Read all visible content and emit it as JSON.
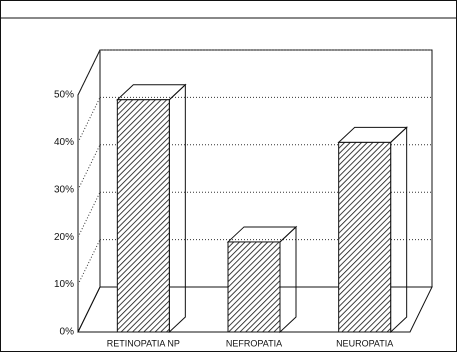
{
  "chart_data": {
    "type": "bar3d",
    "categories": [
      "RETINOPATIA NP",
      "NEFROPATIA",
      "NEUROPATIA"
    ],
    "values": [
      49,
      19,
      40
    ],
    "color": "#ffffff",
    "ylim": [
      0,
      50
    ],
    "yticks": [
      {
        "value": 0,
        "label": "0%"
      },
      {
        "value": 10,
        "label": "10%"
      },
      {
        "value": 20,
        "label": "20%"
      },
      {
        "value": 30,
        "label": "30%"
      },
      {
        "value": 40,
        "label": "40%"
      },
      {
        "value": 50,
        "label": "50%"
      }
    ],
    "grid": true
  }
}
